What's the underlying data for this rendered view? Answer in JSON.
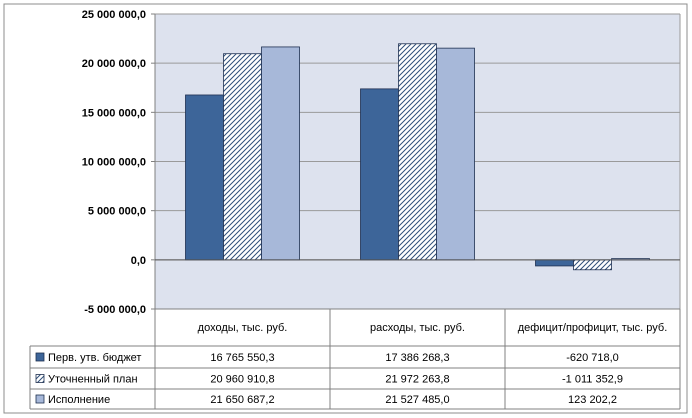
{
  "chart_data": {
    "type": "bar",
    "title": "",
    "xlabel": "",
    "ylabel": "",
    "ylim": [
      -5000000,
      25000000
    ],
    "y_ticks": [
      25000000,
      20000000,
      15000000,
      10000000,
      5000000,
      0,
      -5000000
    ],
    "y_tick_labels": [
      "25 000 000,0",
      "20 000 000,0",
      "15 000 000,0",
      "10 000 000,0",
      "5 000 000,0",
      "0,0",
      "-5 000 000,0"
    ],
    "grid": true,
    "legend": "data-table",
    "categories": [
      "доходы, тыс. руб.",
      "расходы, тыс. руб.",
      "дефицит/профицит,  тыс. руб."
    ],
    "series": [
      {
        "name": "Перв. утв. бюджет",
        "values": [
          16765550.3,
          17386268.3,
          -620718.0
        ],
        "labels": [
          "16 765 550,3",
          "17 386 268,3",
          "-620 718,0"
        ],
        "color": "#3d6599",
        "pattern": "solid"
      },
      {
        "name": "Уточненный план",
        "values": [
          20960910.8,
          21972263.8,
          -1011352.9
        ],
        "labels": [
          "20 960 910,8",
          "21 972 263,8",
          "-1 011 352,9"
        ],
        "color": "#2f4f7a",
        "pattern": "hatch"
      },
      {
        "name": "Исполнение",
        "values": [
          21650687.2,
          21527485.0,
          123202.2
        ],
        "labels": [
          "21 650 687,2",
          "21 527 485,0",
          "123 202,2"
        ],
        "color": "#a7b8d9",
        "pattern": "solid"
      }
    ]
  }
}
